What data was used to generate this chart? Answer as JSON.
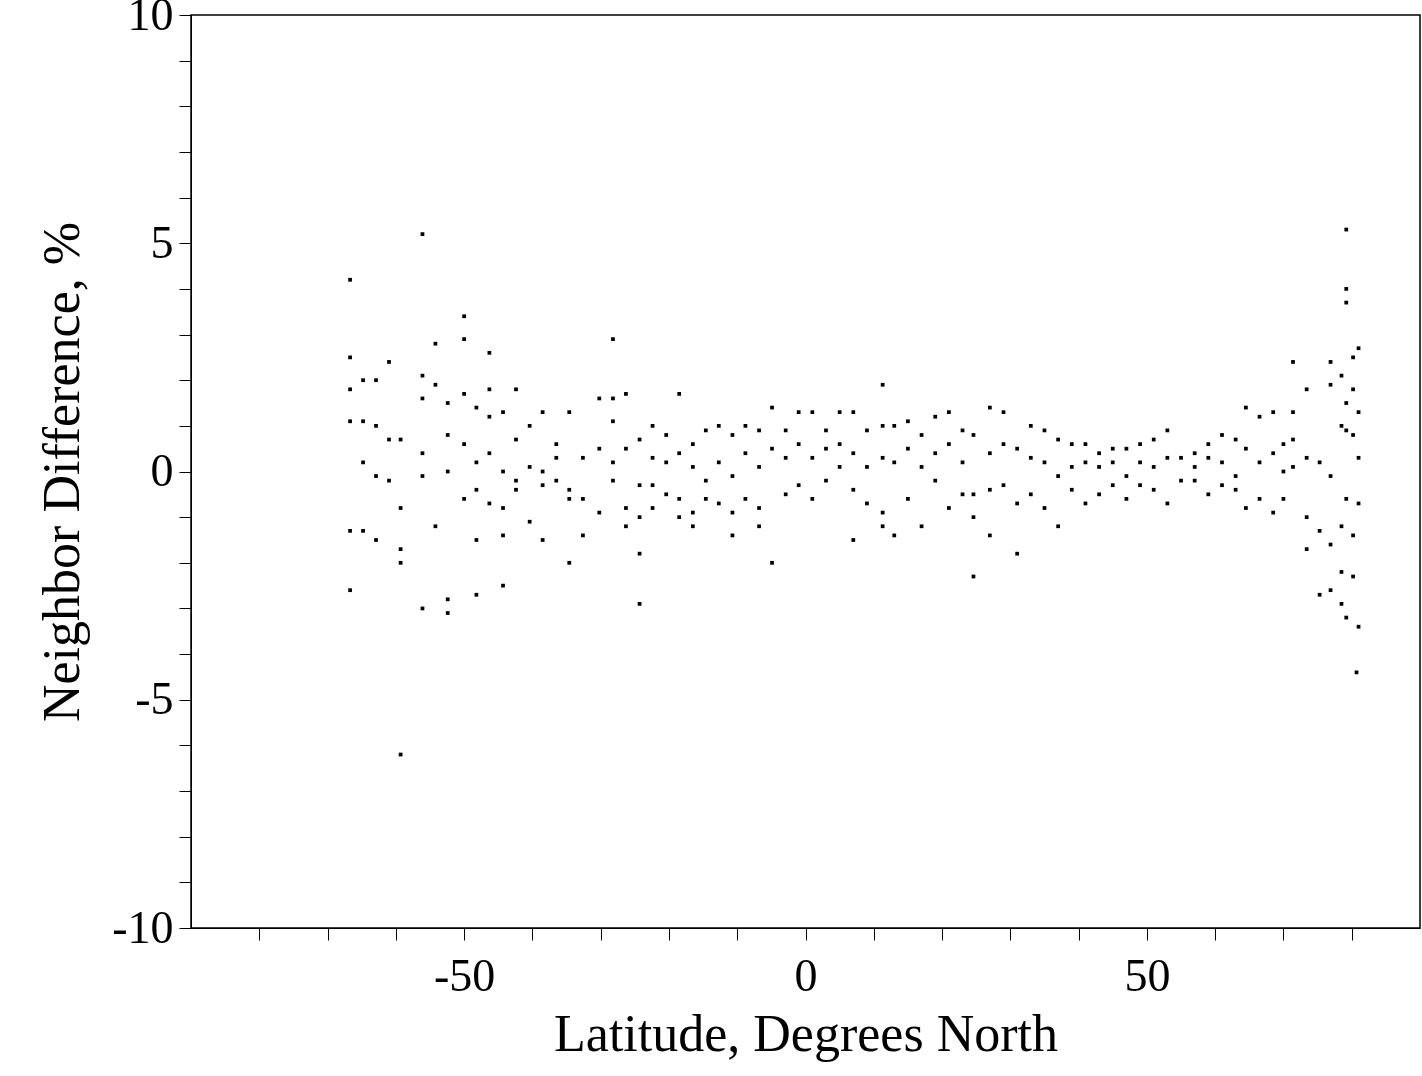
{
  "chart_data": {
    "type": "scatter",
    "xlabel": "Latitude, Degrees North",
    "ylabel": "Neighbor Difference, %",
    "xlim": [
      -90,
      90
    ],
    "ylim": [
      -10,
      10
    ],
    "xticks": [
      {
        "value": -80,
        "label": null
      },
      {
        "value": -70,
        "label": null
      },
      {
        "value": -60,
        "label": null
      },
      -50,
      {
        "value": -40,
        "label": null
      },
      {
        "value": -30,
        "label": null
      },
      {
        "value": -20,
        "label": null
      },
      {
        "value": -10,
        "label": null
      },
      0,
      {
        "value": 10,
        "label": null
      },
      {
        "value": 20,
        "label": null
      },
      {
        "value": 30,
        "label": null
      },
      {
        "value": 40,
        "label": null
      },
      50,
      {
        "value": 60,
        "label": null
      },
      {
        "value": 70,
        "label": null
      },
      {
        "value": 80,
        "label": null
      }
    ],
    "yticks": [
      -10,
      {
        "value": -9,
        "label": null
      },
      {
        "value": -8,
        "label": null
      },
      {
        "value": -7,
        "label": null
      },
      {
        "value": -6,
        "label": null
      },
      -5,
      {
        "value": -4,
        "label": null
      },
      {
        "value": -3,
        "label": null
      },
      {
        "value": -2,
        "label": null
      },
      {
        "value": -1,
        "label": null
      },
      0,
      {
        "value": 1,
        "label": null
      },
      {
        "value": 2,
        "label": null
      },
      {
        "value": 3,
        "label": null
      },
      {
        "value": 4,
        "label": null
      },
      5,
      {
        "value": 6,
        "label": null
      },
      {
        "value": 7,
        "label": null
      },
      {
        "value": 8,
        "label": null
      },
      {
        "value": 9,
        "label": null
      },
      10
    ],
    "grid": false,
    "marker": "square",
    "series": [
      {
        "color": "#000000",
        "x": [
          -66.7,
          -66.7,
          -66.7,
          -66.7,
          -66.7,
          -66.7,
          -64.8,
          -64.8,
          -64.8,
          -64.8,
          -62.9,
          -62.9,
          -62.9,
          -62.9,
          -61,
          -61,
          -61,
          -59.3,
          -59.3,
          -59.3,
          -59.3,
          -59.3,
          -56.1,
          -56.1,
          -56.1,
          -56.1,
          -56.1,
          -56.1,
          -54.2,
          -54.2,
          -54.2,
          -52.4,
          -52.4,
          -52.4,
          -52.4,
          -52.4,
          -50,
          -50,
          -50,
          -50,
          -50,
          -48.2,
          -48.2,
          -48.2,
          -48.2,
          -48.2,
          -46.3,
          -46.3,
          -46.3,
          -46.3,
          -46.3,
          -44.3,
          -44.3,
          -44.3,
          -44.3,
          -44.3,
          -42.4,
          -42.4,
          -42.4,
          -42.4,
          -40.4,
          -40.4,
          -40.4,
          -38.5,
          -38.5,
          -38.5,
          -38.5,
          -36.5,
          -36.5,
          -36.5,
          -34.6,
          -34.6,
          -34.6,
          -34.6,
          -32.6,
          -32.6,
          -32.6,
          -30.2,
          -30.2,
          -30.2,
          -28.2,
          -28.2,
          -28.2,
          -28.2,
          -28.2,
          -26.3,
          -26.3,
          -26.3,
          -26.3,
          -24.3,
          -24.3,
          -24.3,
          -24.3,
          -24.3,
          -22.4,
          -22.4,
          -22.4,
          -22.4,
          -20.4,
          -20.4,
          -20.4,
          -18.5,
          -18.5,
          -18.5,
          -18.5,
          -16.5,
          -16.5,
          -16.5,
          -16.5,
          -14.6,
          -14.6,
          -14.6,
          -12.7,
          -12.7,
          -12.7,
          -10.7,
          -10.7,
          -10.7,
          -10.7,
          -8.8,
          -8.8,
          -8.8,
          -6.8,
          -6.8,
          -6.8,
          -6.8,
          -4.9,
          -4.9,
          -4.9,
          -2.9,
          -2.9,
          -2.9,
          -1,
          -1,
          -1,
          1,
          1,
          1,
          3,
          3,
          3,
          5,
          5,
          5,
          7,
          7,
          7,
          7,
          9,
          9,
          9,
          11.3,
          11.3,
          11.3,
          11.3,
          11.3,
          13,
          13,
          13,
          15,
          15,
          15,
          17,
          17,
          17,
          19,
          19,
          19,
          21,
          21,
          21,
          23,
          23,
          23,
          24.6,
          24.6,
          24.6,
          24.6,
          27,
          27,
          27,
          27,
          29,
          29,
          29,
          31,
          31,
          31,
          33,
          33,
          33,
          35,
          35,
          35,
          37,
          37,
          37,
          39,
          39,
          39,
          41,
          41,
          41,
          43,
          43,
          43,
          45,
          45,
          45,
          47,
          47,
          47,
          49,
          49,
          49,
          51,
          51,
          51,
          53,
          53,
          53,
          55,
          55,
          57,
          57,
          57,
          59,
          59,
          59,
          61,
          61,
          61,
          63,
          63,
          63,
          64.5,
          64.5,
          64.5,
          66.5,
          66.5,
          66.5,
          68.5,
          68.5,
          68.5,
          70,
          70,
          70,
          71.4,
          71.4,
          71.4,
          71.4,
          73.4,
          73.4,
          73.4,
          73.4,
          75.3,
          75.3,
          75.3,
          76.9,
          76.9,
          76.9,
          76.9,
          76.9,
          78.5,
          78.5,
          78.5,
          78.5,
          78.5,
          79.2,
          79.2,
          79.2,
          79.2,
          79.2,
          79.2,
          79.2,
          80.2,
          80.2,
          80.2,
          80.2,
          80.2,
          81,
          81,
          81,
          81,
          81,
          80.7
        ],
        "values": [
          4.2,
          2.5,
          1.8,
          1.1,
          -1.3,
          -2.6,
          2.0,
          1.1,
          0.2,
          -1.3,
          2.0,
          1.0,
          -0.1,
          -1.5,
          2.4,
          0.7,
          -0.2,
          0.7,
          -0.8,
          -1.7,
          -2.0,
          -6.2,
          5.2,
          2.1,
          1.6,
          0.4,
          -0.1,
          -3.0,
          2.8,
          1.9,
          -1.2,
          1.5,
          0.8,
          0,
          -2.8,
          -3.1,
          3.4,
          2.9,
          1.7,
          0.6,
          -0.6,
          1.4,
          0.2,
          -0.4,
          -1.5,
          -2.7,
          2.6,
          1.8,
          1.2,
          0.4,
          -0.7,
          1.3,
          0,
          -0.8,
          -1.4,
          -2.5,
          1.8,
          0.7,
          -0.2,
          -0.4,
          1.0,
          0.1,
          -1.1,
          1.3,
          0,
          -0.3,
          -1.5,
          0.6,
          0.3,
          -0.2,
          1.3,
          -0.4,
          -0.6,
          -2.0,
          0.3,
          -0.6,
          -1.4,
          1.6,
          0.5,
          -0.9,
          2.9,
          1.6,
          1.1,
          0.2,
          -0.2,
          1.7,
          0.5,
          -0.8,
          -1.2,
          0.7,
          -0.3,
          -1.0,
          -1.8,
          -2.9,
          1.0,
          0.3,
          -0.3,
          -0.8,
          0.8,
          0.2,
          -0.5,
          1.7,
          0.4,
          -0.6,
          -1.0,
          0.6,
          0.1,
          -0.9,
          -1.2,
          0.9,
          -0.2,
          -0.6,
          1.0,
          0.2,
          -0.7,
          0.8,
          -0.1,
          -0.9,
          -1.4,
          1.0,
          0.4,
          -0.6,
          0.9,
          0.1,
          -0.8,
          -1.2,
          1.4,
          0.5,
          -2.0,
          0.9,
          0.3,
          -0.5,
          1.3,
          0.6,
          -0.3,
          1.3,
          0.3,
          -0.6,
          0.9,
          0.5,
          -0.2,
          1.3,
          0.6,
          0.1,
          1.3,
          0.4,
          -0.4,
          -1.5,
          0.9,
          0.1,
          -0.7,
          1.9,
          1.0,
          0.3,
          -0.9,
          -1.2,
          1.0,
          0.2,
          -1.4,
          1.1,
          0.5,
          -0.6,
          0.8,
          0.1,
          -1.2,
          1.2,
          0.4,
          -0.2,
          1.3,
          0.6,
          -0.8,
          0.9,
          0.2,
          -0.5,
          0.8,
          -0.5,
          -1.0,
          -2.3,
          1.4,
          0.4,
          -0.4,
          -1.4,
          1.3,
          0.6,
          -0.3,
          0.5,
          -0.7,
          -1.8,
          1.0,
          0.3,
          -0.5,
          0.9,
          0.2,
          -0.8,
          0.7,
          -0.1,
          -1.2,
          0.6,
          0.1,
          -0.4,
          0.6,
          0.2,
          -0.7,
          0.4,
          0.1,
          -0.5,
          0.5,
          0.2,
          -0.3,
          0.5,
          -0.1,
          -0.6,
          0.6,
          0.2,
          -0.3,
          0.7,
          0.1,
          -0.4,
          0.9,
          0.3,
          -0.7,
          0.3,
          -0.2,
          0.4,
          0.1,
          -0.2,
          0.6,
          0.3,
          -0.5,
          0.8,
          0.2,
          -0.3,
          0.7,
          -0.1,
          -0.4,
          1.4,
          0.5,
          -0.8,
          1.2,
          0.2,
          -0.6,
          1.3,
          0.4,
          -0.9,
          0.6,
          0,
          -0.6,
          2.4,
          1.3,
          0.7,
          0.1,
          1.8,
          0.3,
          -1.0,
          -1.7,
          0.2,
          -1.3,
          -2.7,
          2.4,
          1.9,
          -0.1,
          -1.6,
          -2.6,
          2.1,
          1.0,
          -1.2,
          -2.2,
          -2.9,
          5.3,
          4.0,
          3.7,
          1.5,
          0.9,
          -0.6,
          -3.2,
          2.5,
          1.8,
          0.8,
          -1.4,
          -2.3,
          2.7,
          1.3,
          0.3,
          -0.7,
          -3.4,
          -4.4
        ]
      }
    ]
  }
}
